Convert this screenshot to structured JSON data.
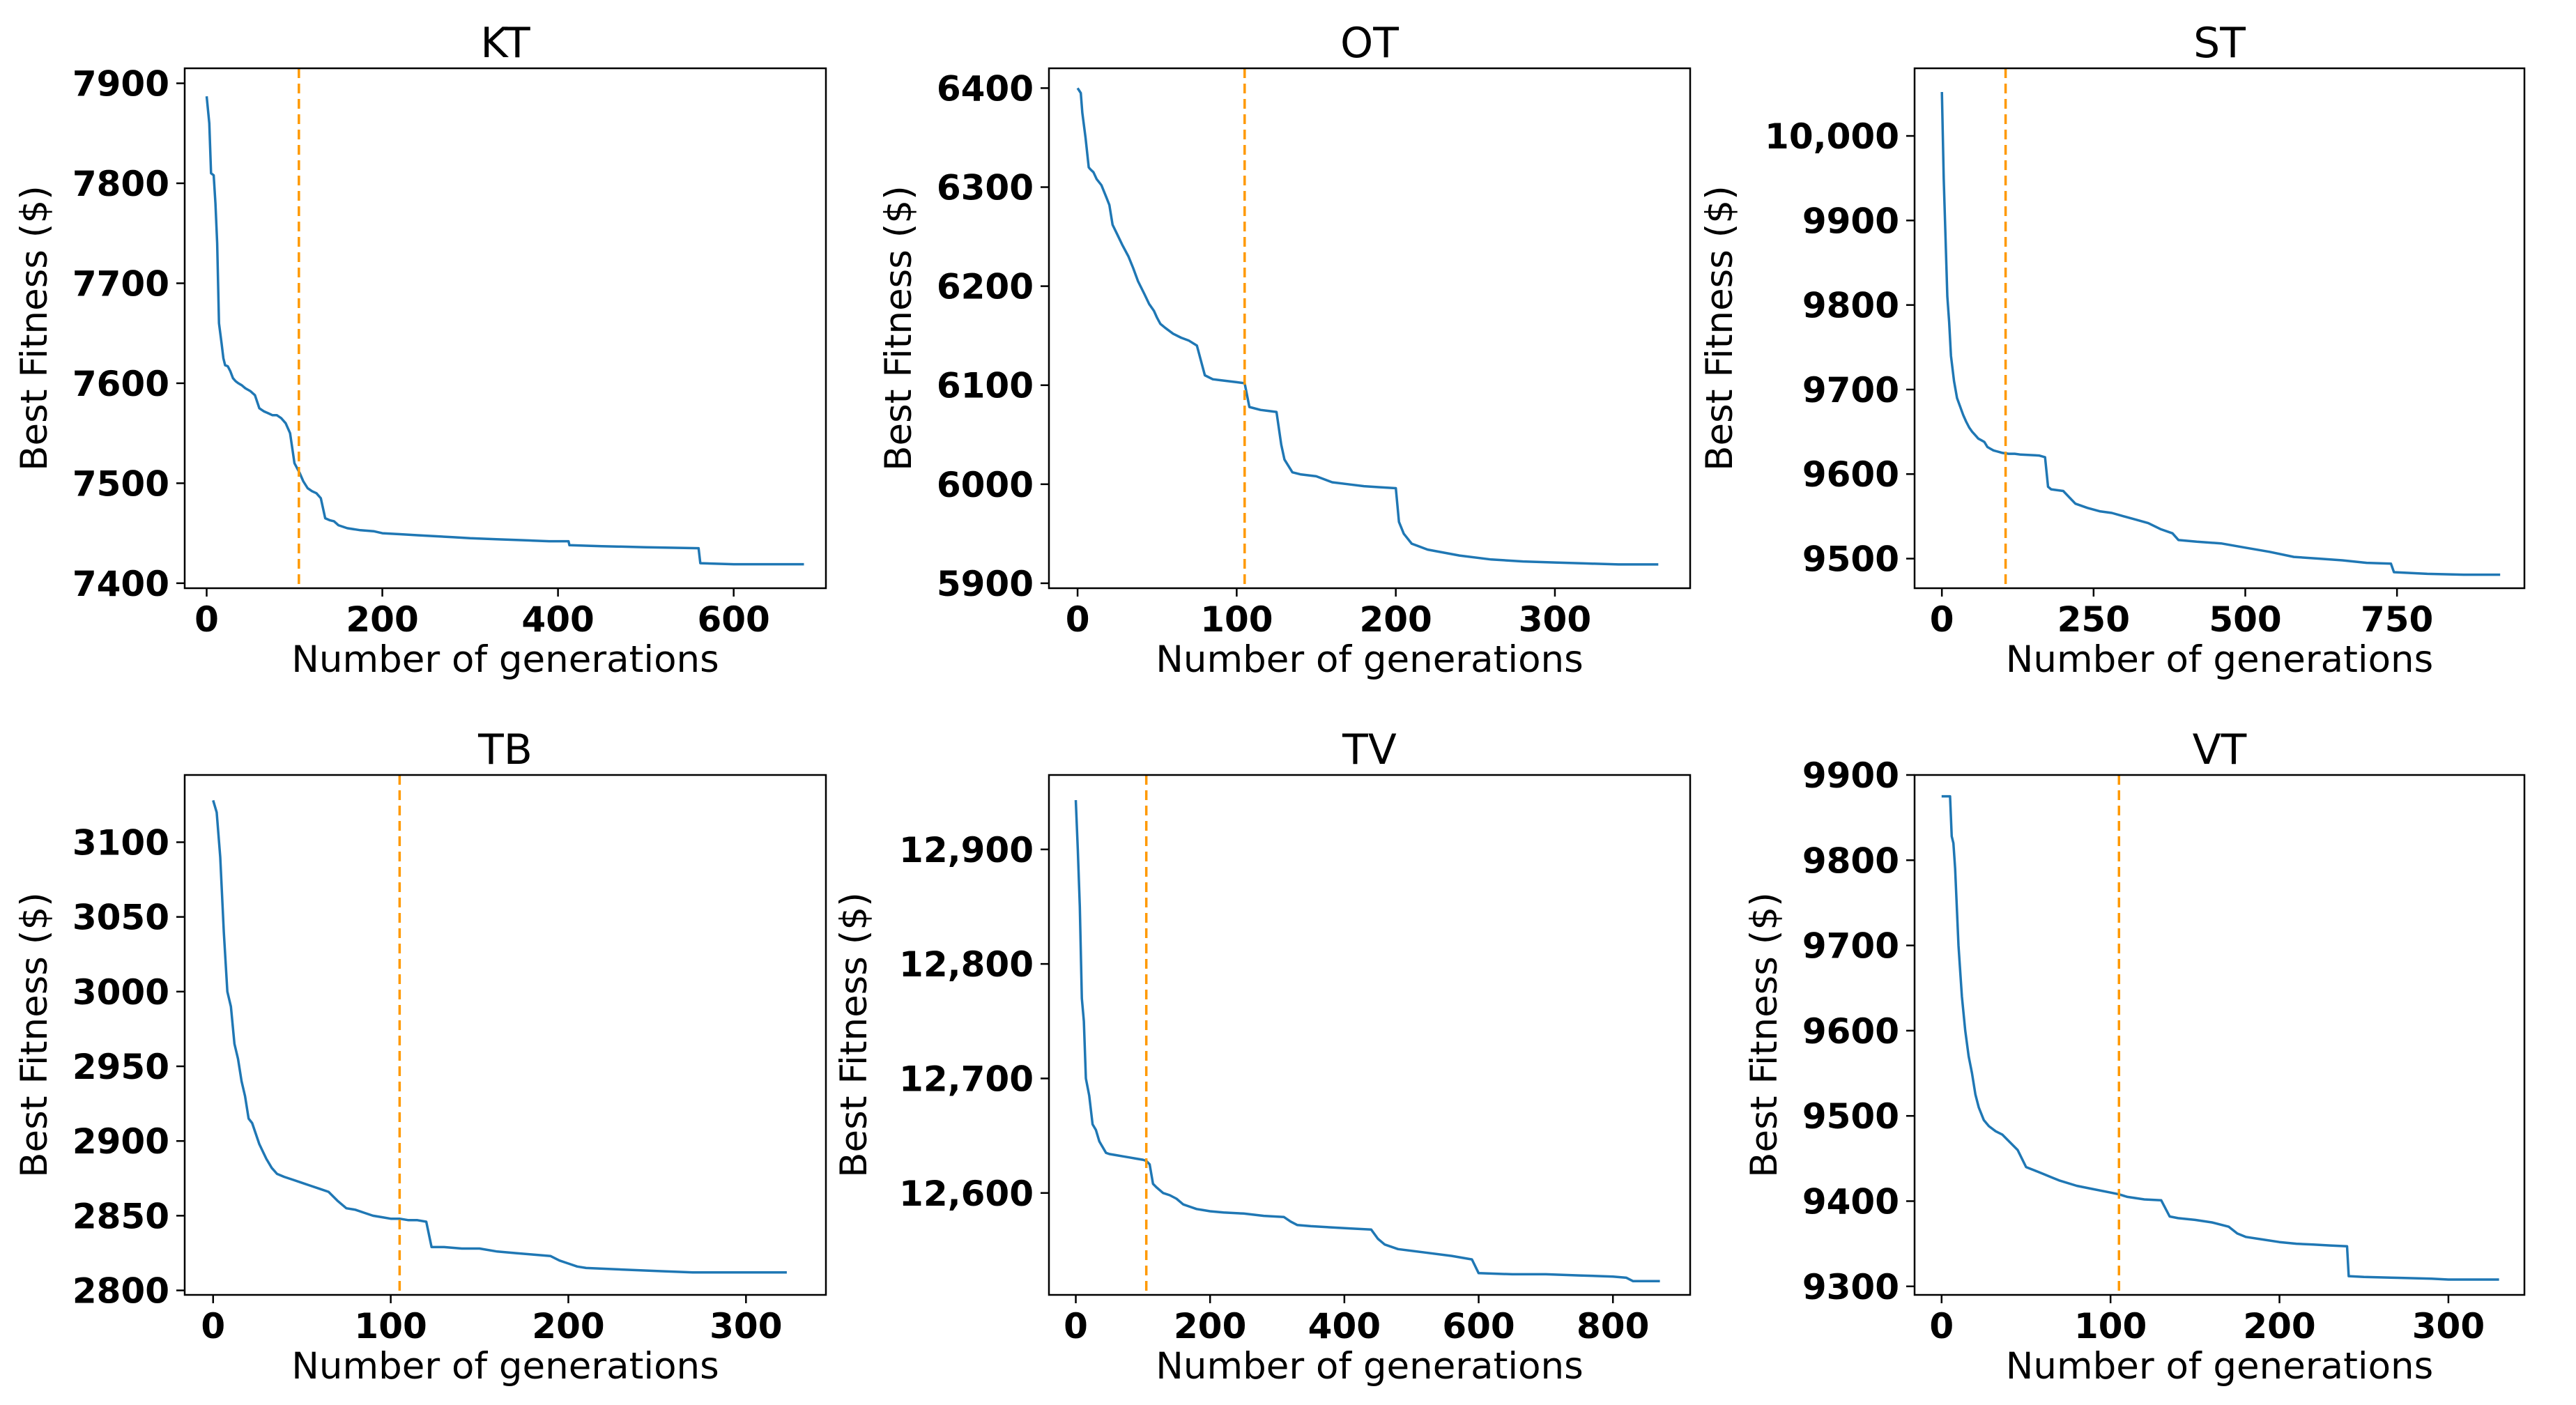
{
  "chart_data": [
    {
      "type": "line",
      "title": "KT",
      "xlabel": "Number of generations",
      "ylabel": "Best Fitness ($)",
      "xlim": [
        -25,
        705
      ],
      "ylim": [
        7395,
        7915
      ],
      "xticks": [
        0,
        200,
        400,
        600
      ],
      "xtick_labels": [
        "0",
        "200",
        "400",
        "600"
      ],
      "yticks": [
        7400,
        7500,
        7600,
        7700,
        7800,
        7900
      ],
      "ytick_labels": [
        "7400",
        "7500",
        "7600",
        "7700",
        "7800",
        "7900"
      ],
      "vline_x": 105,
      "series": [
        {
          "name": "best fitness",
          "x": [
            0,
            3,
            5,
            8,
            10,
            12,
            14,
            17,
            19,
            21,
            24,
            27,
            30,
            33,
            36,
            40,
            44,
            50,
            55,
            60,
            65,
            70,
            75,
            80,
            85,
            90,
            95,
            100,
            103,
            106,
            110,
            115,
            120,
            125,
            130,
            135,
            140,
            145,
            150,
            160,
            175,
            190,
            200,
            220,
            240,
            260,
            280,
            300,
            330,
            360,
            390,
            412,
            413,
            450,
            500,
            560,
            562,
            600,
            650,
            680
          ],
          "y": [
            7887,
            7860,
            7810,
            7808,
            7780,
            7740,
            7660,
            7640,
            7625,
            7618,
            7617,
            7612,
            7605,
            7602,
            7600,
            7598,
            7595,
            7592,
            7588,
            7575,
            7572,
            7570,
            7568,
            7568,
            7565,
            7560,
            7550,
            7520,
            7515,
            7510,
            7502,
            7495,
            7492,
            7490,
            7485,
            7465,
            7463,
            7462,
            7458,
            7455,
            7453,
            7452,
            7450,
            7449,
            7448,
            7447,
            7446,
            7445,
            7444,
            7443,
            7442,
            7442,
            7438,
            7437,
            7436,
            7435,
            7420,
            7419,
            7419,
            7419
          ]
        }
      ]
    },
    {
      "type": "line",
      "title": "OT",
      "xlabel": "Number of generations",
      "ylabel": "Best Fitness ($)",
      "xlim": [
        -18,
        385
      ],
      "ylim": [
        5895,
        6420
      ],
      "xticks": [
        0,
        100,
        200,
        300
      ],
      "xtick_labels": [
        "0",
        "100",
        "200",
        "300"
      ],
      "yticks": [
        5900,
        6000,
        6100,
        6200,
        6300,
        6400
      ],
      "ytick_labels": [
        "5900",
        "6000",
        "6100",
        "6200",
        "6300",
        "6400"
      ],
      "vline_x": 105,
      "series": [
        {
          "name": "best fitness",
          "x": [
            0,
            2,
            3,
            5,
            7,
            8,
            10,
            12,
            15,
            18,
            20,
            22,
            25,
            28,
            32,
            35,
            38,
            42,
            45,
            48,
            50,
            52,
            55,
            60,
            65,
            70,
            75,
            80,
            85,
            90,
            95,
            100,
            105,
            108,
            115,
            120,
            125,
            128,
            130,
            135,
            140,
            150,
            160,
            170,
            180,
            190,
            200,
            202,
            205,
            210,
            220,
            240,
            260,
            280,
            300,
            320,
            340,
            365
          ],
          "y": [
            6400,
            6395,
            6375,
            6350,
            6320,
            6318,
            6315,
            6308,
            6302,
            6290,
            6282,
            6262,
            6252,
            6242,
            6230,
            6218,
            6205,
            6192,
            6182,
            6175,
            6168,
            6162,
            6158,
            6152,
            6148,
            6145,
            6140,
            6110,
            6106,
            6105,
            6104,
            6103,
            6102,
            6078,
            6075,
            6074,
            6073,
            6040,
            6025,
            6012,
            6010,
            6008,
            6002,
            6000,
            5998,
            5997,
            5996,
            5962,
            5950,
            5940,
            5934,
            5928,
            5924,
            5922,
            5921,
            5920,
            5919,
            5919
          ]
        }
      ]
    },
    {
      "type": "line",
      "title": "ST",
      "xlabel": "Number of generations",
      "ylabel": "Best Fitness ($)",
      "xlim": [
        -45,
        960
      ],
      "ylim": [
        9465,
        10080
      ],
      "xticks": [
        0,
        250,
        500,
        750
      ],
      "xtick_labels": [
        "0",
        "250",
        "500",
        "750"
      ],
      "yticks": [
        9500,
        9600,
        9700,
        9800,
        9900,
        10000
      ],
      "ytick_labels": [
        "9500",
        "9600",
        "9700",
        "9800",
        "9900",
        "10,000"
      ],
      "vline_x": 105,
      "series": [
        {
          "name": "best fitness",
          "x": [
            0,
            3,
            6,
            9,
            12,
            15,
            20,
            25,
            30,
            35,
            40,
            45,
            50,
            55,
            60,
            65,
            70,
            75,
            80,
            85,
            90,
            95,
            100,
            110,
            120,
            130,
            160,
            170,
            175,
            180,
            200,
            220,
            240,
            260,
            280,
            300,
            320,
            340,
            360,
            380,
            390,
            420,
            460,
            500,
            540,
            580,
            620,
            660,
            700,
            740,
            745,
            800,
            860,
            920
          ],
          "y": [
            10052,
            9950,
            9880,
            9810,
            9780,
            9740,
            9710,
            9690,
            9680,
            9670,
            9662,
            9655,
            9650,
            9646,
            9642,
            9640,
            9638,
            9632,
            9630,
            9628,
            9627,
            9626,
            9625,
            9624,
            9624,
            9623,
            9622,
            9620,
            9585,
            9582,
            9580,
            9565,
            9560,
            9556,
            9554,
            9550,
            9546,
            9542,
            9535,
            9530,
            9522,
            9520,
            9518,
            9513,
            9508,
            9502,
            9500,
            9498,
            9495,
            9494,
            9484,
            9482,
            9481,
            9481
          ]
        }
      ]
    },
    {
      "type": "line",
      "title": "TB",
      "xlabel": "Number of generations",
      "ylabel": "Best Fitness ($)",
      "xlim": [
        -16,
        345
      ],
      "ylim": [
        2797,
        3145
      ],
      "xticks": [
        0,
        100,
        200,
        300
      ],
      "xtick_labels": [
        "0",
        "100",
        "200",
        "300"
      ],
      "yticks": [
        2800,
        2850,
        2900,
        2950,
        3000,
        3050,
        3100
      ],
      "ytick_labels": [
        "2800",
        "2850",
        "2900",
        "2950",
        "3000",
        "3050",
        "3100"
      ],
      "vline_x": 105,
      "series": [
        {
          "name": "best fitness",
          "x": [
            0,
            2,
            4,
            6,
            8,
            10,
            12,
            14,
            16,
            18,
            20,
            22,
            24,
            26,
            28,
            30,
            33,
            36,
            40,
            45,
            50,
            55,
            60,
            65,
            70,
            75,
            80,
            85,
            90,
            95,
            100,
            105,
            110,
            115,
            120,
            123,
            130,
            140,
            150,
            160,
            170,
            180,
            190,
            195,
            200,
            205,
            210,
            230,
            250,
            270,
            290,
            300,
            323
          ],
          "y": [
            3128,
            3120,
            3090,
            3040,
            3000,
            2990,
            2965,
            2955,
            2940,
            2930,
            2915,
            2912,
            2905,
            2898,
            2893,
            2888,
            2882,
            2878,
            2876,
            2874,
            2872,
            2870,
            2868,
            2866,
            2860,
            2855,
            2854,
            2852,
            2850,
            2849,
            2848,
            2848,
            2847,
            2847,
            2846,
            2829,
            2829,
            2828,
            2828,
            2826,
            2825,
            2824,
            2823,
            2820,
            2818,
            2816,
            2815,
            2814,
            2813,
            2812,
            2812,
            2812,
            2812
          ]
        }
      ]
    },
    {
      "type": "line",
      "title": "TV",
      "xlabel": "Number of generations",
      "ylabel": "Best Fitness ($)",
      "xlim": [
        -40,
        915
      ],
      "ylim": [
        12511,
        12965
      ],
      "xticks": [
        0,
        200,
        400,
        600,
        800
      ],
      "xtick_labels": [
        "0",
        "200",
        "400",
        "600",
        "800"
      ],
      "yticks": [
        12600,
        12700,
        12800,
        12900
      ],
      "ytick_labels": [
        "12,600",
        "12,700",
        "12,800",
        "12,900"
      ],
      "vline_x": 105,
      "series": [
        {
          "name": "best fitness",
          "x": [
            0,
            3,
            6,
            9,
            12,
            15,
            20,
            25,
            30,
            35,
            40,
            45,
            50,
            60,
            70,
            80,
            90,
            100,
            105,
            110,
            115,
            120,
            130,
            140,
            150,
            160,
            170,
            180,
            190,
            200,
            220,
            250,
            280,
            310,
            320,
            330,
            350,
            380,
            410,
            440,
            450,
            460,
            480,
            520,
            560,
            590,
            600,
            650,
            700,
            750,
            800,
            820,
            830,
            870
          ],
          "y": [
            12943,
            12900,
            12850,
            12770,
            12750,
            12700,
            12685,
            12660,
            12655,
            12645,
            12640,
            12635,
            12634,
            12633,
            12632,
            12631,
            12630,
            12629,
            12628,
            12625,
            12608,
            12605,
            12600,
            12598,
            12595,
            12590,
            12588,
            12586,
            12585,
            12584,
            12583,
            12582,
            12580,
            12579,
            12575,
            12572,
            12571,
            12570,
            12569,
            12568,
            12560,
            12555,
            12551,
            12548,
            12545,
            12542,
            12530,
            12529,
            12529,
            12528,
            12527,
            12526,
            12523,
            12523
          ]
        }
      ]
    },
    {
      "type": "line",
      "title": "VT",
      "xlabel": "Number of generations",
      "ylabel": "Best Fitness ($)",
      "xlim": [
        -16,
        345
      ],
      "ylim": [
        9290,
        9900
      ],
      "xticks": [
        0,
        100,
        200,
        300
      ],
      "xtick_labels": [
        "0",
        "100",
        "200",
        "300"
      ],
      "yticks": [
        9300,
        9400,
        9500,
        9600,
        9700,
        9800,
        9900
      ],
      "ytick_labels": [
        "9300",
        "9400",
        "9500",
        "9600",
        "9700",
        "9800",
        "9900"
      ],
      "vline_x": 105,
      "series": [
        {
          "name": "best fitness",
          "x": [
            0,
            5,
            6,
            7,
            8,
            10,
            12,
            14,
            16,
            18,
            20,
            22,
            25,
            28,
            32,
            36,
            40,
            45,
            50,
            55,
            60,
            65,
            70,
            80,
            90,
            100,
            105,
            110,
            120,
            130,
            135,
            140,
            150,
            160,
            170,
            175,
            180,
            190,
            200,
            210,
            220,
            230,
            240,
            241,
            250,
            270,
            290,
            300,
            330
          ],
          "y": [
            9875,
            9875,
            9828,
            9820,
            9790,
            9700,
            9640,
            9600,
            9570,
            9550,
            9525,
            9510,
            9495,
            9488,
            9482,
            9478,
            9470,
            9460,
            9440,
            9436,
            9432,
            9428,
            9424,
            9418,
            9414,
            9410,
            9408,
            9405,
            9402,
            9401,
            9382,
            9380,
            9378,
            9375,
            9370,
            9362,
            9358,
            9355,
            9352,
            9350,
            9349,
            9348,
            9347,
            9312,
            9311,
            9310,
            9309,
            9308,
            9308
          ]
        }
      ]
    }
  ]
}
